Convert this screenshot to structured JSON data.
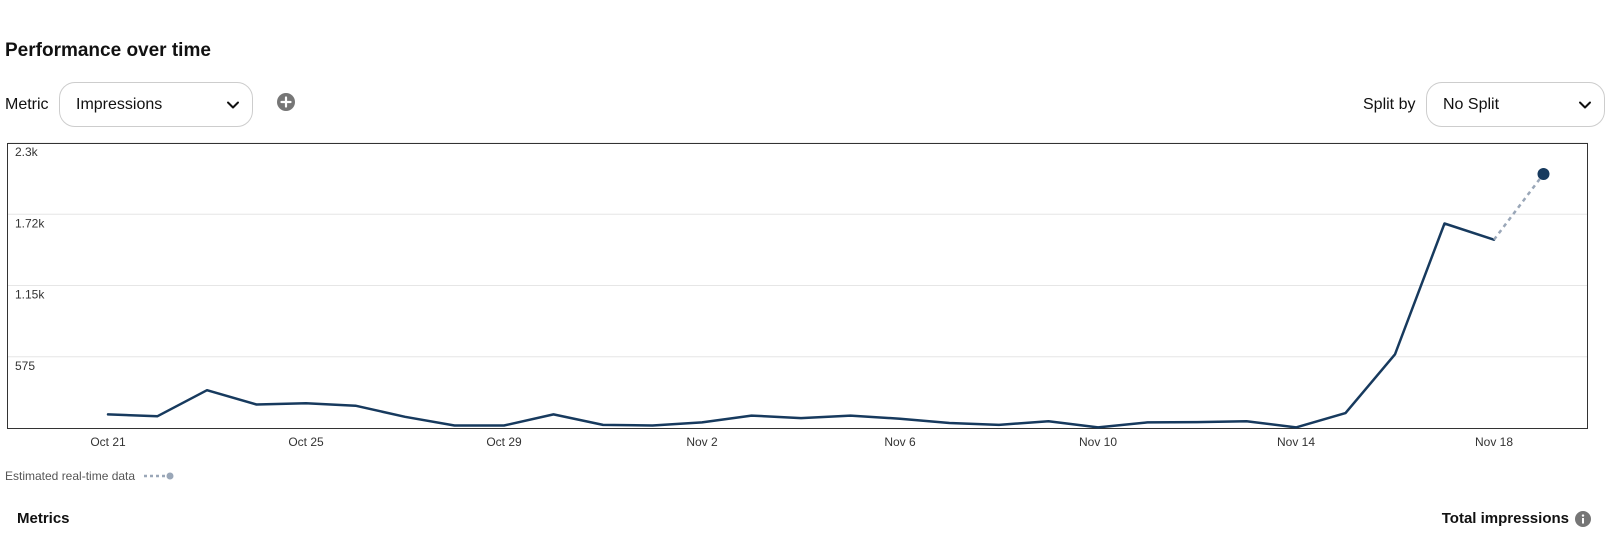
{
  "header": {
    "title": "Performance over time"
  },
  "controls": {
    "metric_label": "Metric",
    "metric_value": "Impressions",
    "split_label": "Split by",
    "split_value": "No Split"
  },
  "legend_note": "Estimated real-time data",
  "footer": {
    "metrics_heading": "Metrics",
    "total_label": "Total impressions"
  },
  "icons": {
    "dropdown": "chevron-down-icon",
    "add": "plus-circle-icon",
    "info": "info-icon",
    "estimate": "dotted-line-legend-icon"
  },
  "colors": {
    "line": "#173a5e",
    "estimate": "#9aa7b8",
    "grid": "#e6e6e6"
  },
  "chart_data": {
    "type": "line",
    "ylim": [
      0,
      2300
    ],
    "yticks": [
      575,
      1150,
      1725,
      2300
    ],
    "ytick_labels": [
      "575",
      "1.15k",
      "1.72k",
      "2.3k"
    ],
    "xlim": [
      "2023-10-21",
      "2023-11-19"
    ],
    "xticks": [
      "2023-10-21",
      "2023-10-25",
      "2023-10-29",
      "2023-11-02",
      "2023-11-06",
      "2023-11-10",
      "2023-11-14",
      "2023-11-18"
    ],
    "xtick_labels": [
      "Oct 21",
      "Oct 25",
      "Oct 29",
      "Nov 2",
      "Nov 6",
      "Nov 10",
      "Nov 14",
      "Nov 18"
    ],
    "grid": true,
    "series": [
      {
        "x": [
          "2023-10-21",
          "2023-10-22",
          "2023-10-23",
          "2023-10-24",
          "2023-10-25",
          "2023-10-26",
          "2023-10-27",
          "2023-10-28",
          "2023-10-29",
          "2023-10-30",
          "2023-10-31",
          "2023-11-01",
          "2023-11-02",
          "2023-11-03",
          "2023-11-04",
          "2023-11-05",
          "2023-11-06",
          "2023-11-07",
          "2023-11-08",
          "2023-11-09",
          "2023-11-10",
          "2023-11-11",
          "2023-11-12",
          "2023-11-13",
          "2023-11-14",
          "2023-11-15",
          "2023-11-16",
          "2023-11-17",
          "2023-11-18"
        ],
        "values": [
          110,
          95,
          305,
          190,
          200,
          180,
          90,
          20,
          20,
          110,
          25,
          20,
          45,
          100,
          80,
          100,
          75,
          40,
          25,
          55,
          5,
          45,
          48,
          55,
          5,
          120,
          595,
          1650,
          1520
        ]
      }
    ],
    "estimate": {
      "x": [
        "2023-11-18",
        "2023-11-19"
      ],
      "values": [
        1520,
        2050
      ]
    }
  }
}
